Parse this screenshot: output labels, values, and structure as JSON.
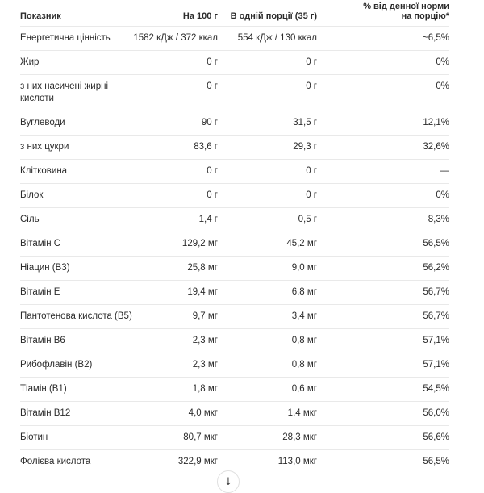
{
  "table": {
    "columns": [
      "Показник",
      "На 100 г",
      "В одній порції (35 г)",
      "% від денної норми на порцію*"
    ],
    "rows": [
      {
        "label": "Енергетична цінність",
        "per_100g": "1582 кДж / 372 ккал",
        "per_serving": "554 кДж / 130 ккал",
        "daily_percent": "~6,5%"
      },
      {
        "label": "Жир",
        "per_100g": "0 г",
        "per_serving": "0 г",
        "daily_percent": "0%"
      },
      {
        "label": "з них насичені жирні кислоти",
        "per_100g": "0 г",
        "per_serving": "0 г",
        "daily_percent": "0%"
      },
      {
        "label": "Вуглеводи",
        "per_100g": "90 г",
        "per_serving": "31,5 г",
        "daily_percent": "12,1%"
      },
      {
        "label": "з них цукри",
        "per_100g": "83,6 г",
        "per_serving": "29,3 г",
        "daily_percent": "32,6%"
      },
      {
        "label": "Клітковина",
        "per_100g": "0 г",
        "per_serving": "0 г",
        "daily_percent": "—"
      },
      {
        "label": "Білок",
        "per_100g": "0 г",
        "per_serving": "0 г",
        "daily_percent": "0%"
      },
      {
        "label": "Сіль",
        "per_100g": "1,4 г",
        "per_serving": "0,5 г",
        "daily_percent": "8,3%"
      },
      {
        "label": "Вітамін C",
        "per_100g": "129,2 мг",
        "per_serving": "45,2 мг",
        "daily_percent": "56,5%"
      },
      {
        "label": "Ніацин (B3)",
        "per_100g": "25,8 мг",
        "per_serving": "9,0 мг",
        "daily_percent": "56,2%"
      },
      {
        "label": "Вітамін E",
        "per_100g": "19,4 мг",
        "per_serving": "6,8 мг",
        "daily_percent": "56,7%"
      },
      {
        "label": "Пантотенова кислота (B5)",
        "per_100g": "9,7 мг",
        "per_serving": "3,4 мг",
        "daily_percent": "56,7%"
      },
      {
        "label": "Вітамін B6",
        "per_100g": "2,3 мг",
        "per_serving": "0,8 мг",
        "daily_percent": "57,1%"
      },
      {
        "label": "Рибофлавін (B2)",
        "per_100g": "2,3 мг",
        "per_serving": "0,8 мг",
        "daily_percent": "57,1%"
      },
      {
        "label": "Тіамін (B1)",
        "per_100g": "1,8 мг",
        "per_serving": "0,6 мг",
        "daily_percent": "54,5%"
      },
      {
        "label": "Вітамін B12",
        "per_100g": "4,0 мкг",
        "per_serving": "1,4 мкг",
        "daily_percent": "56,0%"
      },
      {
        "label": "Біотин",
        "per_100g": "80,7 мкг",
        "per_serving": "28,3 мкг",
        "daily_percent": "56,6%"
      },
      {
        "label": "Фолієва кислота",
        "per_100g": "322,9 мкг",
        "per_serving": "113,0 мкг",
        "daily_percent": "56,5%"
      }
    ]
  },
  "scroll_button": {
    "glyph": "↓"
  },
  "colors": {
    "text": "#2b2b2b",
    "divider": "#e9e9e9",
    "background": "#ffffff",
    "button_border": "#e0e0e0"
  }
}
